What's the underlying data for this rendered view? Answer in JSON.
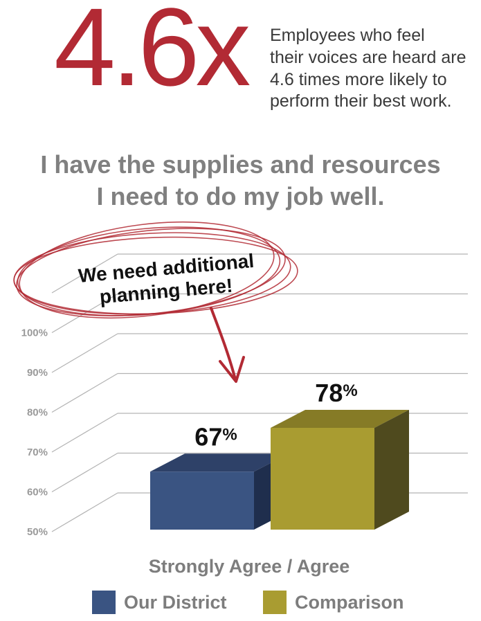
{
  "stat": {
    "value": "4.6x",
    "caption_lines": [
      "Employees who feel",
      "their voices are heard are",
      "4.6 times more likely to",
      "perform their best work."
    ]
  },
  "headline_lines": [
    "I have the supplies and resources",
    "I need to do my job well."
  ],
  "callout": {
    "lines": [
      "We need additional",
      "planning here!"
    ],
    "color": "#b22a34"
  },
  "chart_data": {
    "type": "bar",
    "categories": [
      "Strongly Agree / Agree"
    ],
    "series": [
      {
        "name": "Our District",
        "values": [
          67
        ],
        "color": "#3a5482"
      },
      {
        "name": "Comparison",
        "values": [
          78
        ],
        "color": "#a99c31"
      }
    ],
    "data_labels": [
      "67%",
      "78%"
    ],
    "y_ticks": [
      "50%",
      "60%",
      "70%",
      "80%",
      "90%",
      "100%"
    ],
    "ylim": [
      50,
      100
    ],
    "xlabel": "Strongly Agree / Agree",
    "legend_position": "bottom",
    "grid": true
  },
  "legend": [
    {
      "label": "Our District",
      "color": "#3a5482"
    },
    {
      "label": "Comparison",
      "color": "#a99c31"
    }
  ]
}
